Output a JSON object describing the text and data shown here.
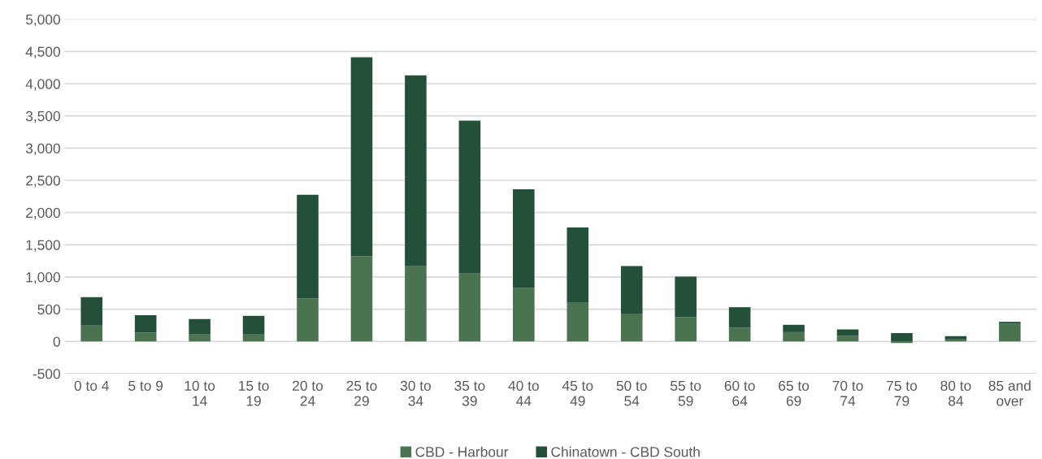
{
  "chart_data": {
    "type": "bar",
    "stacked": true,
    "categories": [
      "0 to 4",
      "5 to 9",
      "10 to 14",
      "15 to 19",
      "20 to 24",
      "25 to 29",
      "30 to 34",
      "35 to 39",
      "40 to 44",
      "45 to 49",
      "50 to 54",
      "55 to 59",
      "60 to 64",
      "65 to 69",
      "70 to 74",
      "75 to 79",
      "80 to 84",
      "85 and over"
    ],
    "series": [
      {
        "name": "CBD - Harbour",
        "color": "#4a7350",
        "values": [
          247,
          136,
          107,
          107,
          665,
          1320,
          1165,
          1054,
          830,
          598,
          423,
          376,
          211,
          144,
          88,
          -25,
          31,
          273
        ]
      },
      {
        "name": "Chinatown - CBD South",
        "color": "#244f38",
        "values": [
          440,
          270,
          240,
          290,
          1610,
          3090,
          2965,
          2374,
          1530,
          1170,
          747,
          630,
          320,
          114,
          98,
          129,
          51,
          31
        ]
      }
    ],
    "ylim": [
      -500,
      5000
    ],
    "yticks": [
      {
        "value": -500,
        "label": "-500"
      },
      {
        "value": 0,
        "label": "0"
      },
      {
        "value": 500,
        "label": "500"
      },
      {
        "value": 1000,
        "label": "1,000"
      },
      {
        "value": 1500,
        "label": "1,500"
      },
      {
        "value": 2000,
        "label": "2,000"
      },
      {
        "value": 2500,
        "label": "2,500"
      },
      {
        "value": 3000,
        "label": "3,000"
      },
      {
        "value": 3500,
        "label": "3,500"
      },
      {
        "value": 4000,
        "label": "4,000"
      },
      {
        "value": 4500,
        "label": "4,500"
      },
      {
        "value": 5000,
        "label": "5,000"
      }
    ],
    "grid": "y",
    "legend": "bottom"
  }
}
